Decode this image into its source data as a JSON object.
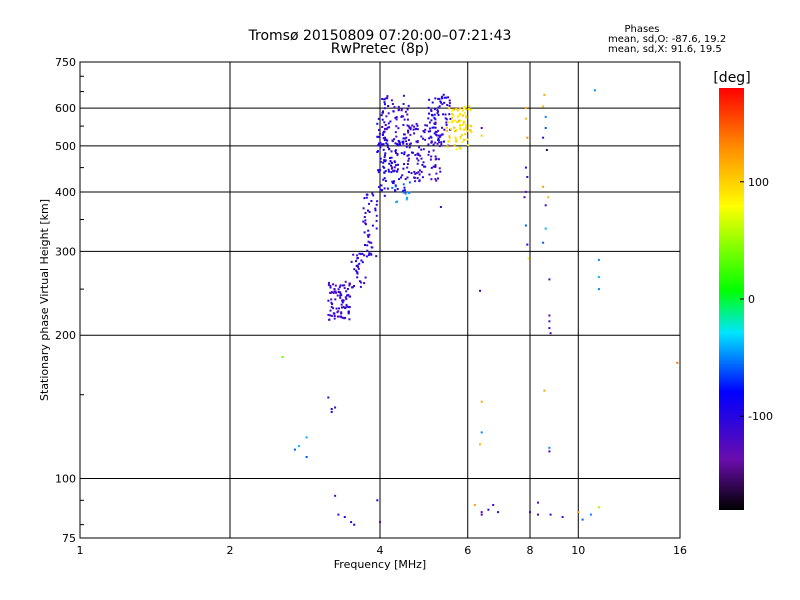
{
  "chart_data": {
    "type": "scatter",
    "title": "Tromsø 20150809 07:20:00–07:21:43",
    "subtitle": "RwPretec (8p)",
    "xlabel": "Frequency [MHz]",
    "ylabel": "Stationary phase Virtual Height [km]",
    "x_scale": "log2",
    "y_scale": "log",
    "xlim": [
      1,
      16
    ],
    "ylim": [
      75,
      750
    ],
    "x_ticks": [
      "1",
      "2",
      "4",
      "6",
      "8",
      "10",
      "16"
    ],
    "x_tick_values": [
      1,
      2,
      4,
      6,
      8,
      10,
      16
    ],
    "y_ticks": [
      "75",
      "100",
      "200",
      "300",
      "400",
      "500",
      "600",
      "750"
    ],
    "y_tick_values": [
      75,
      100,
      200,
      300,
      400,
      500,
      600,
      750
    ],
    "grid": true,
    "phase_info": {
      "heading": "Phases",
      "line_o": "mean, sd,O:  -87.6, 19.2",
      "line_x": "mean, sd,X:  91.6, 19.5"
    },
    "colorbar": {
      "label": "[deg]",
      "range": [
        -180,
        180
      ],
      "ticks": [
        "100",
        "0",
        "-100"
      ],
      "tick_values": [
        100,
        0,
        -100
      ]
    },
    "trace_bands": [
      {
        "f": [
          3.15,
          3.5
        ],
        "h": [
          215,
          260
        ],
        "phase": -110,
        "n": 90
      },
      {
        "f": [
          3.5,
          3.75
        ],
        "h": [
          250,
          300
        ],
        "phase": -105,
        "n": 30
      },
      {
        "f": [
          3.7,
          3.95
        ],
        "h": [
          290,
          400
        ],
        "phase": -105,
        "n": 45
      },
      {
        "f": [
          3.95,
          4.1
        ],
        "h": [
          390,
          640
        ],
        "phase": -100,
        "n": 55
      },
      {
        "f": [
          4.05,
          4.6
        ],
        "h": [
          440,
          640
        ],
        "phase": -110,
        "n": 90
      },
      {
        "f": [
          4.1,
          4.5
        ],
        "h": [
          400,
          520
        ],
        "phase": -95,
        "n": 50
      },
      {
        "f": [
          4.5,
          5.3
        ],
        "h": [
          420,
          560
        ],
        "phase": -110,
        "n": 110
      },
      {
        "f": [
          5.0,
          5.55
        ],
        "h": [
          500,
          640
        ],
        "phase": -100,
        "n": 70
      },
      {
        "f": [
          5.45,
          6.1
        ],
        "h": [
          490,
          600
        ],
        "phase": 95,
        "n": 75
      },
      {
        "f": [
          5.9,
          6.1
        ],
        "h": [
          590,
          610
        ],
        "phase": 85,
        "n": 8
      },
      {
        "f": [
          4.2,
          4.6
        ],
        "h": [
          380,
          420
        ],
        "phase": -50,
        "n": 12
      }
    ],
    "points": [
      {
        "f": 2.55,
        "h": 180,
        "p": 40
      },
      {
        "f": 2.7,
        "h": 115,
        "p": -60
      },
      {
        "f": 2.75,
        "h": 117,
        "p": -40
      },
      {
        "f": 2.85,
        "h": 122,
        "p": -40
      },
      {
        "f": 2.85,
        "h": 111,
        "p": -60
      },
      {
        "f": 3.15,
        "h": 148,
        "p": -110
      },
      {
        "f": 3.2,
        "h": 140,
        "p": -100
      },
      {
        "f": 3.25,
        "h": 141,
        "p": -110
      },
      {
        "f": 3.2,
        "h": 138,
        "p": -90
      },
      {
        "f": 3.25,
        "h": 92,
        "p": -120
      },
      {
        "f": 3.3,
        "h": 84,
        "p": -110
      },
      {
        "f": 3.4,
        "h": 83,
        "p": -110
      },
      {
        "f": 3.5,
        "h": 81,
        "p": -100
      },
      {
        "f": 3.55,
        "h": 80,
        "p": -90
      },
      {
        "f": 3.95,
        "h": 90,
        "p": -110
      },
      {
        "f": 4.0,
        "h": 81,
        "p": -120
      },
      {
        "f": 5.3,
        "h": 372,
        "p": -110
      },
      {
        "f": 6.1,
        "h": 535,
        "p": 100
      },
      {
        "f": 6.35,
        "h": 248,
        "p": -110
      },
      {
        "f": 6.4,
        "h": 545,
        "p": -120
      },
      {
        "f": 6.4,
        "h": 525,
        "p": 100
      },
      {
        "f": 6.4,
        "h": 145,
        "p": 120
      },
      {
        "f": 6.4,
        "h": 125,
        "p": -50
      },
      {
        "f": 6.35,
        "h": 118,
        "p": 110
      },
      {
        "f": 6.4,
        "h": 84,
        "p": -110
      },
      {
        "f": 6.4,
        "h": 85,
        "p": -130
      },
      {
        "f": 6.2,
        "h": 88,
        "p": 120
      },
      {
        "f": 6.75,
        "h": 88,
        "p": -110
      },
      {
        "f": 6.6,
        "h": 86,
        "p": -100
      },
      {
        "f": 6.9,
        "h": 85,
        "p": -110
      },
      {
        "f": 7.85,
        "h": 600,
        "p": 120
      },
      {
        "f": 7.85,
        "h": 570,
        "p": 110
      },
      {
        "f": 7.9,
        "h": 520,
        "p": 130
      },
      {
        "f": 7.85,
        "h": 450,
        "p": -100
      },
      {
        "f": 7.9,
        "h": 430,
        "p": -110
      },
      {
        "f": 7.85,
        "h": 400,
        "p": -120
      },
      {
        "f": 7.8,
        "h": 390,
        "p": -110
      },
      {
        "f": 7.85,
        "h": 340,
        "p": -60
      },
      {
        "f": 7.9,
        "h": 310,
        "p": -100
      },
      {
        "f": 7.95,
        "h": 290,
        "p": 90
      },
      {
        "f": 8.0,
        "h": 85,
        "p": -110
      },
      {
        "f": 8.3,
        "h": 89,
        "p": -120
      },
      {
        "f": 8.3,
        "h": 84,
        "p": -110
      },
      {
        "f": 8.55,
        "h": 640,
        "p": 120
      },
      {
        "f": 8.5,
        "h": 605,
        "p": 110
      },
      {
        "f": 8.6,
        "h": 575,
        "p": -50
      },
      {
        "f": 8.6,
        "h": 545,
        "p": -60
      },
      {
        "f": 8.5,
        "h": 520,
        "p": -100
      },
      {
        "f": 8.65,
        "h": 490,
        "p": -160
      },
      {
        "f": 8.5,
        "h": 410,
        "p": 120
      },
      {
        "f": 8.7,
        "h": 390,
        "p": 110
      },
      {
        "f": 8.6,
        "h": 375,
        "p": -110
      },
      {
        "f": 8.6,
        "h": 335,
        "p": -40
      },
      {
        "f": 8.5,
        "h": 313,
        "p": -60
      },
      {
        "f": 8.75,
        "h": 262,
        "p": -120
      },
      {
        "f": 8.75,
        "h": 220,
        "p": -130
      },
      {
        "f": 8.75,
        "h": 214,
        "p": -120
      },
      {
        "f": 8.75,
        "h": 207,
        "p": -110
      },
      {
        "f": 8.8,
        "h": 202,
        "p": -120
      },
      {
        "f": 8.55,
        "h": 153,
        "p": 120
      },
      {
        "f": 8.75,
        "h": 116,
        "p": -50
      },
      {
        "f": 8.75,
        "h": 114,
        "p": -110
      },
      {
        "f": 8.8,
        "h": 84,
        "p": -110
      },
      {
        "f": 9.3,
        "h": 83,
        "p": -120
      },
      {
        "f": 10.0,
        "h": 85,
        "p": 130
      },
      {
        "f": 10.2,
        "h": 82,
        "p": -60
      },
      {
        "f": 10.6,
        "h": 84,
        "p": -50
      },
      {
        "f": 11.0,
        "h": 87,
        "p": 50
      },
      {
        "f": 10.8,
        "h": 654,
        "p": -50
      },
      {
        "f": 11.0,
        "h": 288,
        "p": -50
      },
      {
        "f": 11.0,
        "h": 265,
        "p": -40
      },
      {
        "f": 11.0,
        "h": 250,
        "p": -50
      },
      {
        "f": 15.8,
        "h": 175,
        "p": 140
      }
    ]
  }
}
